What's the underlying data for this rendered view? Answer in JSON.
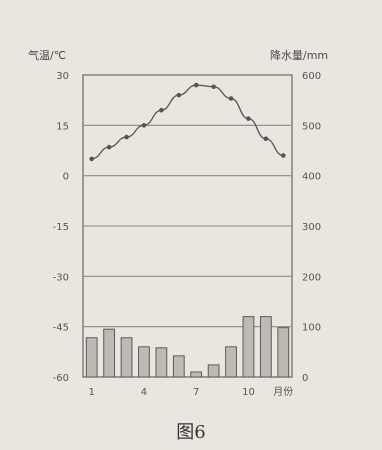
{
  "chart_data": {
    "type": "climate",
    "caption": "图6",
    "left_axis": {
      "label": "气温/℃",
      "ticks": [
        30,
        15,
        0,
        -15,
        -30,
        -45,
        -60
      ],
      "ylim": [
        -60,
        30
      ]
    },
    "right_axis": {
      "label": "降水量/mm",
      "ticks": [
        600,
        500,
        400,
        300,
        200,
        100,
        0
      ],
      "ylim": [
        0,
        600
      ]
    },
    "x_ticks": [
      "1",
      "4",
      "7",
      "10",
      "月份"
    ],
    "months": [
      1,
      2,
      3,
      4,
      5,
      6,
      7,
      8,
      9,
      10,
      11,
      12
    ],
    "temperature": [
      5,
      8.5,
      11.5,
      15,
      19.5,
      24,
      27,
      26.5,
      23,
      17,
      11,
      6
    ],
    "precipitation": [
      78,
      95,
      78,
      60,
      58,
      42,
      10,
      24,
      60,
      120,
      120,
      98
    ]
  }
}
